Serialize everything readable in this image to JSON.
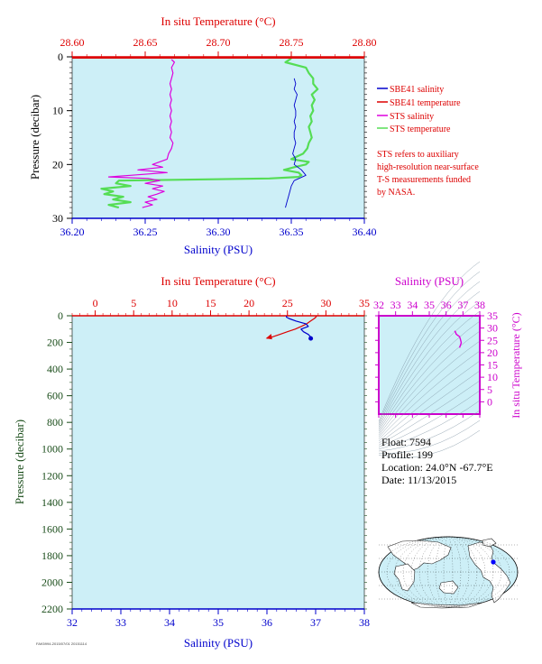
{
  "colors": {
    "plot_bg": "#cdeff7",
    "sbe_salinity": "#0000cc",
    "sbe_temperature": "#dd0000",
    "sts_salinity": "#dd00dd",
    "sts_temperature": "#55dd55",
    "pressure_axis": "#1a4d1a",
    "ts_axis": "#cc00cc",
    "map_land": "#ffffff",
    "map_ocean": "#cdeff7",
    "map_marker": "#0000ff"
  },
  "float_info": {
    "float": "Float:  7594",
    "profile": "Profile:  199",
    "location": "Location:  24.0°N  -67.7°E",
    "date": "Date:  11/13/2015"
  },
  "note": {
    "lines": [
      "STS refers to auxiliary",
      "high-resolution near-surface",
      "T-S measurements funded",
      "by NASA."
    ]
  },
  "credit": "FAK5994-2015/07/01 20151114",
  "chart_data": [
    {
      "type": "line",
      "id": "near-surface",
      "top_title": "In situ Temperature (°C)",
      "bottom_title": "Salinity (PSU)",
      "ylabel": "Pressure (decibar)",
      "temp_range": [
        28.6,
        28.8
      ],
      "temp_ticks": [
        "28.60",
        "28.65",
        "28.70",
        "28.75",
        "28.80"
      ],
      "sal_range": [
        36.2,
        36.4
      ],
      "sal_ticks": [
        "36.20",
        "36.25",
        "36.30",
        "36.35",
        "36.40"
      ],
      "pressure_range": [
        0,
        30
      ],
      "pressure_ticks": [
        "0",
        "10",
        "20",
        "30"
      ],
      "legend": [
        {
          "label": "SBE41 salinity",
          "color_key": "sbe_salinity"
        },
        {
          "label": "SBE41 temperature",
          "color_key": "sbe_temperature"
        },
        {
          "label": "STS salinity",
          "color_key": "sts_salinity"
        },
        {
          "label": "STS temperature",
          "color_key": "sts_temperature"
        }
      ],
      "series": {
        "sts_salinity": {
          "p": [
            0.5,
            1,
            2,
            3,
            4,
            5,
            6,
            7,
            8,
            9,
            10,
            11,
            12,
            13,
            14,
            15,
            16,
            17,
            18,
            19,
            20,
            20.5,
            21,
            21.5,
            22,
            22.3,
            22.6,
            23,
            23.5,
            24,
            24.5,
            25,
            25.5,
            26,
            26.5,
            27,
            27.5,
            28
          ],
          "s": [
            36.268,
            36.27,
            36.268,
            36.269,
            36.268,
            36.267,
            36.268,
            36.267,
            36.268,
            36.267,
            36.268,
            36.267,
            36.268,
            36.267,
            36.268,
            36.267,
            36.269,
            36.268,
            36.266,
            36.265,
            36.255,
            36.262,
            36.245,
            36.265,
            36.24,
            36.225,
            36.252,
            36.26,
            36.25,
            36.262,
            36.255,
            36.263,
            36.258,
            36.252,
            36.258,
            36.25,
            36.255,
            36.248
          ]
        },
        "sts_temperature": {
          "p": [
            0.3,
            1,
            2,
            3,
            4,
            5,
            6,
            7,
            8,
            9,
            10,
            11,
            12,
            13,
            14,
            15,
            16,
            17,
            18,
            19,
            19.5,
            20,
            20.5,
            21,
            21.5,
            22,
            22.3,
            22.6,
            23,
            23.5,
            24,
            24.5,
            25,
            25.5,
            26,
            26.5,
            27,
            27.5,
            28
          ],
          "t": [
            28.75,
            28.746,
            28.76,
            28.762,
            28.765,
            28.765,
            28.768,
            28.764,
            28.766,
            28.764,
            28.765,
            28.763,
            28.764,
            28.762,
            28.763,
            28.764,
            28.762,
            28.761,
            28.758,
            28.75,
            28.762,
            28.76,
            28.752,
            28.745,
            28.755,
            28.757,
            28.755,
            28.735,
            28.632,
            28.63,
            28.64,
            28.62,
            28.628,
            28.622,
            28.635,
            28.628,
            28.64,
            28.625,
            28.632
          ]
        },
        "sbe_salinity": {
          "p": [
            4,
            5,
            6,
            7,
            8,
            9,
            10,
            11,
            12,
            13,
            14,
            15,
            16,
            17,
            18,
            19,
            20,
            21,
            22,
            23,
            24,
            25,
            26,
            27,
            28
          ],
          "s": [
            36.352,
            36.353,
            36.352,
            36.354,
            36.353,
            36.352,
            36.353,
            36.353,
            36.352,
            36.353,
            36.352,
            36.352,
            36.353,
            36.352,
            36.351,
            36.353,
            36.352,
            36.357,
            36.36,
            36.352,
            36.35,
            36.349,
            36.348,
            36.347,
            36.346
          ]
        },
        "sbe_temperature": {
          "p": [
            0.2,
            0.2
          ],
          "t": [
            28.6,
            28.8
          ]
        }
      }
    },
    {
      "type": "line",
      "id": "full-profile",
      "top_title": "In situ Temperature (°C)",
      "bottom_title": "Salinity (PSU)",
      "ylabel": "Pressure (decibar)",
      "temp_range": [
        -3,
        35
      ],
      "temp_ticks": [
        "0",
        "5",
        "10",
        "15",
        "20",
        "25",
        "30",
        "35"
      ],
      "sal_range": [
        32,
        38
      ],
      "sal_ticks": [
        "32",
        "33",
        "34",
        "35",
        "36",
        "37",
        "38"
      ],
      "pressure_range": [
        0,
        2200
      ],
      "pressure_ticks": [
        "0",
        "200",
        "400",
        "600",
        "800",
        "1000",
        "1200",
        "1400",
        "1600",
        "1800",
        "2000",
        "2200"
      ],
      "series": {
        "temperature": {
          "p": [
            0,
            10,
            20,
            40,
            60,
            80,
            100,
            120,
            140,
            160,
            170
          ],
          "t": [
            28.8,
            28.7,
            28.5,
            28.0,
            27.5,
            26.8,
            26.0,
            25.0,
            24.0,
            23.0,
            22.3
          ]
        },
        "salinity": {
          "p": [
            0,
            10,
            20,
            40,
            60,
            80,
            100,
            120,
            140,
            160,
            170
          ],
          "s": [
            36.4,
            36.4,
            36.45,
            36.6,
            36.8,
            36.85,
            36.7,
            36.75,
            36.85,
            36.9,
            36.9
          ]
        }
      }
    },
    {
      "type": "scatter",
      "id": "ts-diagram",
      "top_title": "Salinity (PSU)",
      "right_title": "In situ Temperature (°C)",
      "sal_range": [
        32,
        38
      ],
      "sal_ticks": [
        "32",
        "33",
        "34",
        "35",
        "36",
        "37",
        "38"
      ],
      "temp_range": [
        -5,
        35
      ],
      "temp_ticks": [
        "0",
        "5",
        "10",
        "15",
        "20",
        "25",
        "30",
        "35"
      ],
      "series": {
        "ts": {
          "s": [
            36.5,
            36.55,
            36.6,
            36.8,
            36.85,
            36.9,
            36.85,
            36.8
          ],
          "t": [
            28.8,
            28.5,
            27.5,
            26.5,
            25.5,
            24.0,
            23.0,
            22.0
          ]
        }
      }
    }
  ]
}
